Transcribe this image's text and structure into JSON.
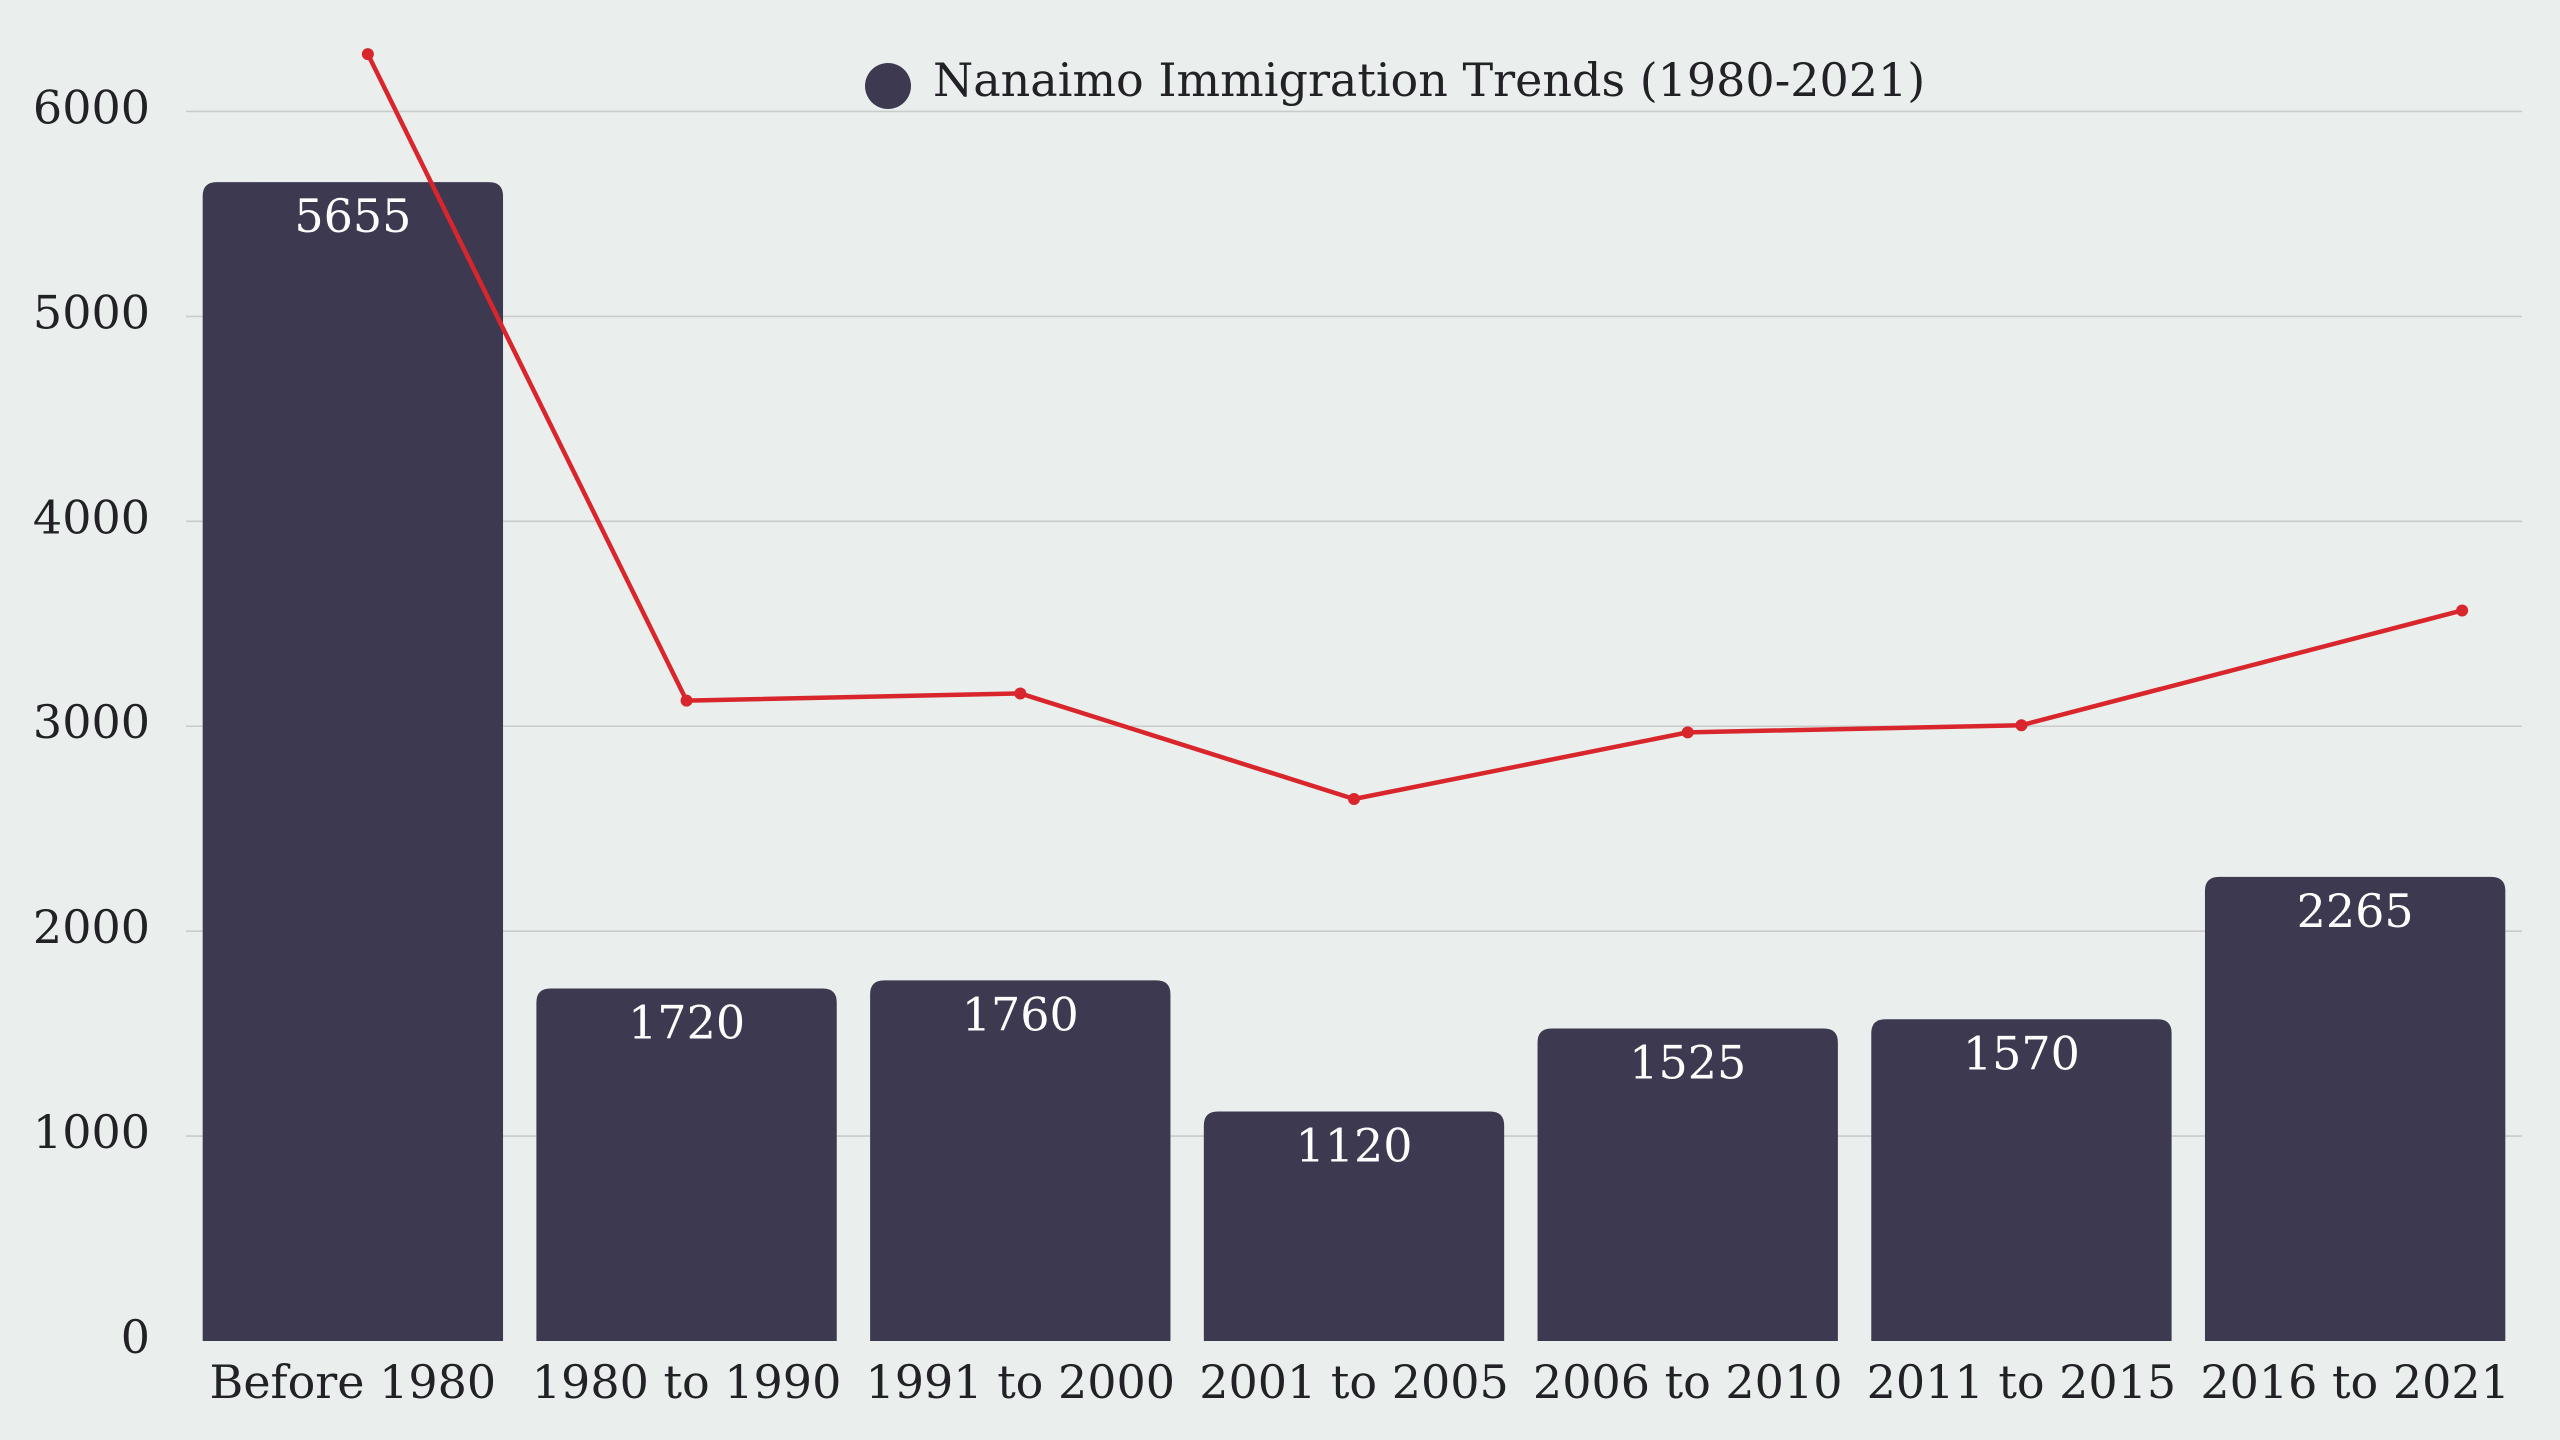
{
  "chart_data": {
    "type": "bar",
    "title": "",
    "xlabel": "",
    "ylabel": "",
    "ylim": [
      0,
      6300
    ],
    "yticks": [
      0,
      1000,
      2000,
      3000,
      4000,
      5000,
      6000
    ],
    "grid": true,
    "legend": {
      "position": "top-center"
    },
    "categories": [
      "Before 1980",
      "1980 to 1990",
      "1991 to 2000",
      "2001 to 2005",
      "2006 to 2010",
      "2011 to 2015",
      "2016 to 2021"
    ],
    "series": [
      {
        "name": "Nanaimo Immigration Trends (1980-2021)",
        "type": "bar",
        "color": "#3d3950",
        "values": [
          5655,
          1720,
          1760,
          1120,
          1525,
          1570,
          2265
        ]
      },
      {
        "type": "line",
        "color": "#d9262d",
        "values": [
          6280,
          3125,
          3160,
          2645,
          2970,
          3005,
          3565
        ]
      }
    ]
  }
}
